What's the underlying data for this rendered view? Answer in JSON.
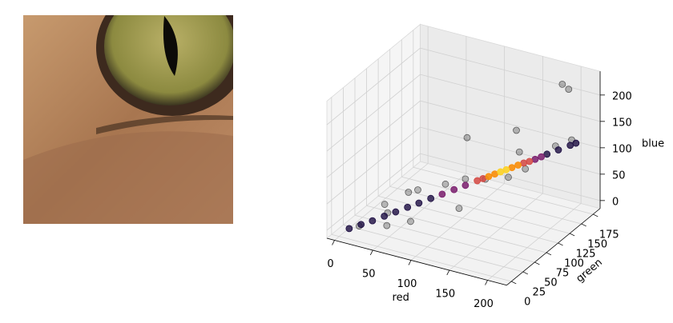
{
  "chart_data": {
    "type": "scatter3d",
    "xlabel": "red",
    "ylabel": "green",
    "zlabel": "blue",
    "xlim": [
      -10,
      225
    ],
    "ylim": [
      -10,
      190
    ],
    "zlim": [
      -15,
      245
    ],
    "xticks": [
      0,
      50,
      100,
      150,
      200
    ],
    "yticks": [
      0,
      25,
      50,
      75,
      100,
      125,
      150,
      175
    ],
    "zticks": [
      0,
      50,
      100,
      150,
      200
    ],
    "grid": true,
    "series": [
      {
        "color": "#000000",
        "alpha": 0.25,
        "x": [
          20,
          35,
          50,
          60,
          75,
          90,
          110,
          130,
          150,
          170,
          185,
          200,
          120,
          140,
          60,
          45,
          200,
          190,
          100,
          160
        ],
        "y": [
          10,
          40,
          20,
          70,
          30,
          80,
          90,
          100,
          140,
          120,
          160,
          170,
          60,
          150,
          50,
          30,
          150,
          180,
          110,
          100
        ],
        "z": [
          5,
          30,
          10,
          45,
          20,
          60,
          70,
          70,
          100,
          90,
          110,
          120,
          40,
          130,
          55,
          25,
          240,
          205,
          130,
          85
        ]
      },
      {
        "color": "#1b0c41",
        "alpha": 0.8,
        "x": [
          10,
          20,
          30,
          40,
          50,
          60,
          70,
          80,
          180,
          190,
          200,
          205
        ],
        "y": [
          5,
          14,
          22,
          31,
          39,
          48,
          56,
          65,
          150,
          158,
          167,
          171
        ],
        "z": [
          0,
          5,
          10,
          16,
          22,
          28,
          34,
          40,
          100,
          106,
          112,
          115
        ]
      },
      {
        "color": "#7a1d6d",
        "alpha": 0.85,
        "x": [
          90,
          100,
          110,
          170,
          175
        ],
        "y": [
          73,
          82,
          90,
          141,
          146
        ],
        "z": [
          46,
          52,
          58,
          93,
          96
        ]
      },
      {
        "color": "#d44842",
        "alpha": 0.85,
        "x": [
          120,
          125,
          160,
          165
        ],
        "y": [
          99,
          103,
          133,
          137
        ],
        "z": [
          64,
          67,
          88,
          90
        ]
      },
      {
        "color": "#f98e09",
        "alpha": 0.9,
        "x": [
          130,
          135,
          150,
          155
        ],
        "y": [
          107,
          112,
          124,
          129
        ],
        "z": [
          70,
          73,
          82,
          85
        ]
      },
      {
        "color": "#fcd225",
        "alpha": 0.9,
        "x": [
          140,
          145
        ],
        "y": [
          116,
          120
        ],
        "z": [
          76,
          79
        ]
      }
    ]
  }
}
